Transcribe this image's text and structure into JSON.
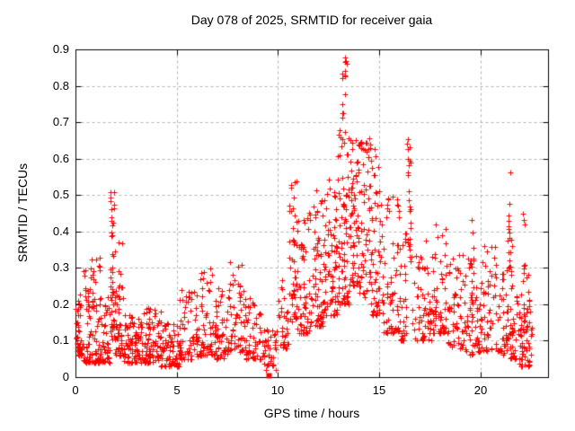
{
  "page": {
    "background_color": "#ffffff",
    "kind": "gnuplot scatter figure"
  },
  "chart_data": {
    "type": "scatter",
    "title": "Day 078 of 2025, SRMTID for receiver gaia",
    "xlabel": "GPS time / hours",
    "ylabel": "SRMTID / TECUs",
    "xlim": [
      0,
      23.333
    ],
    "ylim": [
      0,
      0.9
    ],
    "x_ticks": [
      0,
      5,
      10,
      15,
      20
    ],
    "y_ticks": [
      0,
      0.1,
      0.2,
      0.3,
      0.4,
      0.5,
      0.6,
      0.7,
      0.8,
      0.9
    ],
    "grid": true,
    "grid_style": "dashed",
    "legend": "none",
    "marker": "plus",
    "colors": {
      "points": "#ff0000",
      "grid": "#b4b4b4",
      "axis": "#000000",
      "text": "#000000",
      "background": "#ffffff"
    },
    "seed": 1234567,
    "point_clusters": [
      {
        "x0": 0.0,
        "x1": 0.35,
        "n": 45,
        "y_min": 0.06,
        "y_max": 0.23,
        "skew": 1.8
      },
      {
        "x0": 0.35,
        "x1": 0.75,
        "n": 45,
        "y_min": 0.04,
        "y_max": 0.3,
        "skew": 2.0
      },
      {
        "x0": 0.75,
        "x1": 1.25,
        "n": 60,
        "y_min": 0.04,
        "y_max": 0.33,
        "skew": 2.0
      },
      {
        "x0": 1.25,
        "x1": 1.7,
        "n": 40,
        "y_min": 0.04,
        "y_max": 0.22,
        "skew": 1.8
      },
      {
        "x0": 1.72,
        "x1": 1.95,
        "n": 48,
        "y_min": 0.1,
        "y_max": 0.52,
        "skew": 1.4
      },
      {
        "x0": 1.95,
        "x1": 2.4,
        "n": 55,
        "y_min": 0.06,
        "y_max": 0.42,
        "skew": 2.4
      },
      {
        "x0": 2.4,
        "x1": 3.3,
        "n": 85,
        "y_min": 0.04,
        "y_max": 0.17,
        "skew": 1.7
      },
      {
        "x0": 3.3,
        "x1": 4.2,
        "n": 80,
        "y_min": 0.04,
        "y_max": 0.19,
        "skew": 2.0
      },
      {
        "x0": 4.2,
        "x1": 5.1,
        "n": 72,
        "y_min": 0.03,
        "y_max": 0.15,
        "skew": 1.7
      },
      {
        "x0": 5.1,
        "x1": 6.1,
        "n": 75,
        "y_min": 0.05,
        "y_max": 0.25,
        "skew": 2.0
      },
      {
        "x0": 6.1,
        "x1": 6.9,
        "n": 62,
        "y_min": 0.06,
        "y_max": 0.3,
        "skew": 2.0
      },
      {
        "x0": 6.9,
        "x1": 7.5,
        "n": 50,
        "y_min": 0.05,
        "y_max": 0.26,
        "skew": 2.0
      },
      {
        "x0": 7.5,
        "x1": 8.4,
        "n": 65,
        "y_min": 0.07,
        "y_max": 0.33,
        "skew": 2.0
      },
      {
        "x0": 8.4,
        "x1": 9.2,
        "n": 52,
        "y_min": 0.05,
        "y_max": 0.22,
        "skew": 1.9
      },
      {
        "x0": 9.2,
        "x1": 9.95,
        "n": 42,
        "y_min": 0.02,
        "y_max": 0.13,
        "skew": 1.5
      },
      {
        "x0": 10.0,
        "x1": 10.55,
        "n": 32,
        "y_min": 0.08,
        "y_max": 0.27,
        "skew": 1.6
      },
      {
        "x0": 10.55,
        "x1": 10.95,
        "n": 48,
        "y_min": 0.15,
        "y_max": 0.55,
        "skew": 1.4
      },
      {
        "x0": 10.95,
        "x1": 11.55,
        "n": 58,
        "y_min": 0.12,
        "y_max": 0.47,
        "skew": 1.8
      },
      {
        "x0": 11.55,
        "x1": 12.25,
        "n": 72,
        "y_min": 0.14,
        "y_max": 0.52,
        "skew": 1.8
      },
      {
        "x0": 12.25,
        "x1": 12.95,
        "n": 75,
        "y_min": 0.17,
        "y_max": 0.55,
        "skew": 1.8
      },
      {
        "x0": 12.95,
        "x1": 13.5,
        "n": 75,
        "y_min": 0.2,
        "y_max": 0.68,
        "skew": 1.6
      },
      {
        "x0": 13.18,
        "x1": 13.38,
        "n": 9,
        "y_min": 0.82,
        "y_max": 0.88,
        "skew": 1.0
      },
      {
        "x0": 13.18,
        "x1": 13.32,
        "n": 5,
        "y_min": 0.71,
        "y_max": 0.8,
        "skew": 1.0
      },
      {
        "x0": 13.5,
        "x1": 13.95,
        "n": 60,
        "y_min": 0.25,
        "y_max": 0.66,
        "skew": 1.6
      },
      {
        "x0": 13.95,
        "x1": 14.6,
        "n": 70,
        "y_min": 0.22,
        "y_max": 0.66,
        "skew": 1.6
      },
      {
        "x0": 14.6,
        "x1": 15.2,
        "n": 62,
        "y_min": 0.17,
        "y_max": 0.63,
        "skew": 1.8
      },
      {
        "x0": 15.2,
        "x1": 16.0,
        "n": 60,
        "y_min": 0.12,
        "y_max": 0.5,
        "skew": 2.0
      },
      {
        "x0": 16.0,
        "x1": 16.35,
        "n": 35,
        "y_min": 0.1,
        "y_max": 0.42,
        "skew": 1.8
      },
      {
        "x0": 16.38,
        "x1": 16.55,
        "n": 26,
        "y_min": 0.28,
        "y_max": 0.67,
        "skew": 1.2
      },
      {
        "x0": 16.6,
        "x1": 17.6,
        "n": 62,
        "y_min": 0.1,
        "y_max": 0.38,
        "skew": 1.9
      },
      {
        "x0": 17.6,
        "x1": 18.4,
        "n": 62,
        "y_min": 0.12,
        "y_max": 0.43,
        "skew": 1.9
      },
      {
        "x0": 18.4,
        "x1": 19.2,
        "n": 55,
        "y_min": 0.08,
        "y_max": 0.35,
        "skew": 2.0
      },
      {
        "x0": 19.2,
        "x1": 19.75,
        "n": 40,
        "y_min": 0.06,
        "y_max": 0.33,
        "skew": 1.8
      },
      {
        "x0": 19.5,
        "x1": 19.65,
        "n": 12,
        "y_min": 0.2,
        "y_max": 0.45,
        "skew": 1.3
      },
      {
        "x0": 19.75,
        "x1": 21.05,
        "n": 85,
        "y_min": 0.07,
        "y_max": 0.36,
        "skew": 2.0
      },
      {
        "x0": 21.3,
        "x1": 21.55,
        "n": 16,
        "y_min": 0.27,
        "y_max": 0.57,
        "skew": 1.2
      },
      {
        "x0": 21.05,
        "x1": 21.9,
        "n": 70,
        "y_min": 0.05,
        "y_max": 0.3,
        "skew": 1.8
      },
      {
        "x0": 21.9,
        "x1": 22.45,
        "n": 60,
        "y_min": 0.03,
        "y_max": 0.28,
        "skew": 1.7
      },
      {
        "x0": 22.05,
        "x1": 22.2,
        "n": 8,
        "y_min": 0.25,
        "y_max": 0.46,
        "skew": 1.2
      },
      {
        "x0": 22.4,
        "x1": 22.55,
        "n": 6,
        "y_min": 0.05,
        "y_max": 0.14,
        "skew": 1.5
      }
    ],
    "special_points": [
      {
        "x": 9.55,
        "y": 0.004,
        "marker": "filled-square"
      }
    ]
  }
}
